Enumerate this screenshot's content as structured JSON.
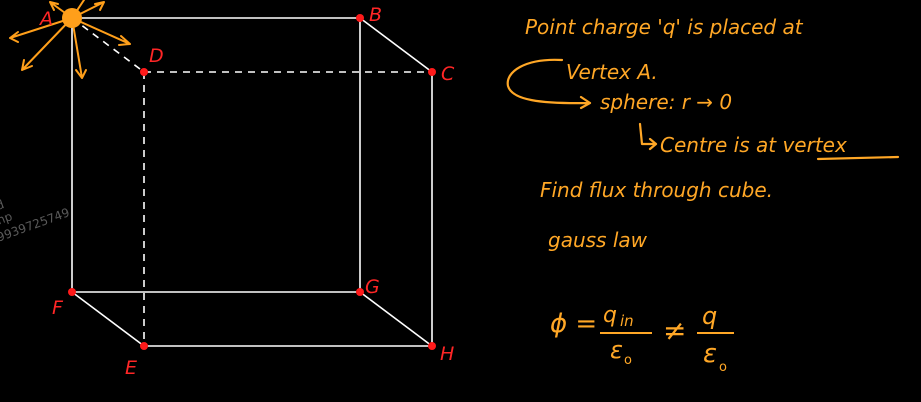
{
  "colors": {
    "background": "#000000",
    "cube_edge": "#ffffff",
    "vertex": "#ff1a1a",
    "label": "#ff2626",
    "charge": "#ff9f1a",
    "ink": "#ffa726",
    "watermark": "#5a5a5a"
  },
  "vertex_labels": {
    "A": "A",
    "B": "B",
    "C": "C",
    "D": "D",
    "E": "E",
    "F": "F",
    "G": "G",
    "H": "H"
  },
  "notes": {
    "line1": "Point charge 'q' is placed at",
    "line2": "Vertex A.",
    "line3": "sphere: r → 0",
    "line4": "Centre is at vertex",
    "line5": "Find flux through cube.",
    "line6": "gauss law",
    "formula_lhs": "ϕ =",
    "frac1_num": "q",
    "frac1_sub": "in",
    "frac1_den": "ε",
    "frac1_den_sub": "o",
    "not_equal": "≠",
    "frac2_num": "q",
    "frac2_den": "ε",
    "frac2_den_sub": "o"
  },
  "watermark": {
    "line1": "d",
    "line2": "hp",
    "line3": "9939725749"
  }
}
